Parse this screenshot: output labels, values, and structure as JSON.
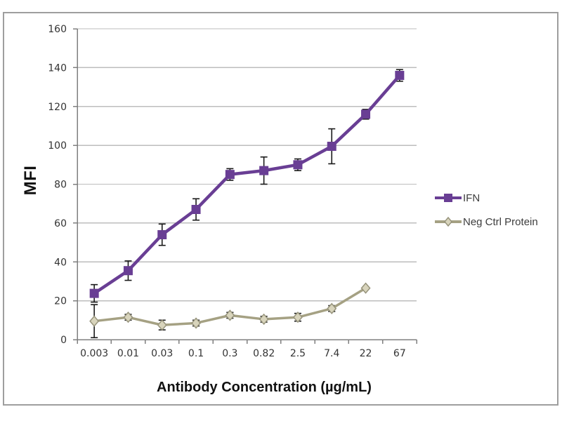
{
  "page": {
    "background": "#ffffff"
  },
  "frame": {
    "border_color": "#9e9e9e"
  },
  "chart_data": {
    "type": "line",
    "title": "",
    "xlabel": "Antibody Concentration (µg/mL)",
    "ylabel": "MFI",
    "categories": [
      "0.003",
      "0.01",
      "0.03",
      "0.1",
      "0.3",
      "0.82",
      "2.5",
      "7.4",
      "22",
      "67"
    ],
    "ylim": [
      0,
      160
    ],
    "yticks": [
      0,
      20,
      40,
      60,
      80,
      100,
      120,
      140,
      160
    ],
    "grid": "horizontal-only",
    "legend_position": "right-middle",
    "axis_color": "#7f7f7f",
    "grid_color": "#bdbdbd",
    "tick_label_color": "#333333",
    "error_bar_color": "#1a1a1a",
    "series": [
      {
        "name": "IFN",
        "color": "#693e94",
        "marker": "square",
        "marker_size": 13,
        "line_width": 4.5,
        "values": [
          23.8,
          35.5,
          54,
          67,
          85,
          87,
          90,
          99.5,
          116,
          136
        ],
        "errors": [
          4.5,
          5,
          5.5,
          5.5,
          3,
          7,
          3,
          9,
          2.5,
          3
        ]
      },
      {
        "name": "Neg Ctrl Protein",
        "color": "#a5a183",
        "marker": "diamond",
        "marker_fill": "#d8d4bc",
        "marker_stroke": "#97947c",
        "marker_size": 12,
        "line_width": 3.5,
        "values": [
          9.5,
          11.5,
          7.5,
          8.5,
          12.5,
          10.5,
          11.5,
          16,
          26.5,
          null
        ],
        "errors": [
          8.5,
          1.5,
          2.5,
          1.5,
          1.5,
          1.5,
          2,
          1.5,
          0,
          null
        ]
      }
    ]
  }
}
